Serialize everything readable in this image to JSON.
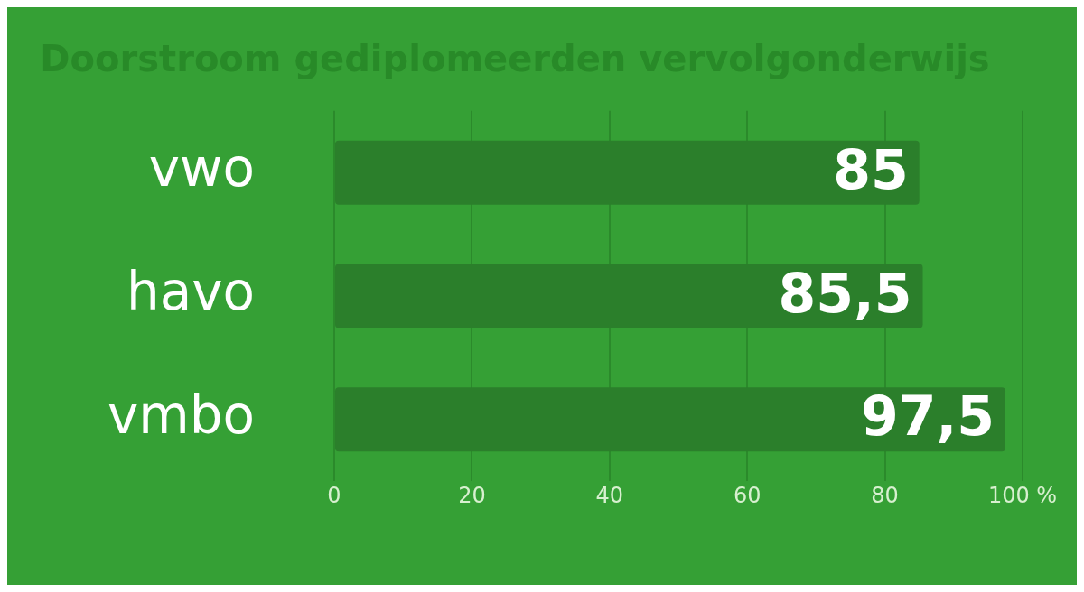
{
  "chart_data": {
    "type": "bar",
    "orientation": "horizontal",
    "title": "Doorstroom gediplomeerden vervolgonderwijs",
    "categories": [
      "vwo",
      "havo",
      "vmbo"
    ],
    "values": [
      85,
      85.5,
      97.5
    ],
    "value_labels": [
      "85",
      "85,5",
      "97,5"
    ],
    "color": "#2b7f2b",
    "xlim": [
      0,
      100
    ],
    "xticks": [
      0,
      20,
      40,
      60,
      80,
      {
        "value": 100,
        "label": "100 %"
      }
    ],
    "grid": "x",
    "legend": false
  }
}
